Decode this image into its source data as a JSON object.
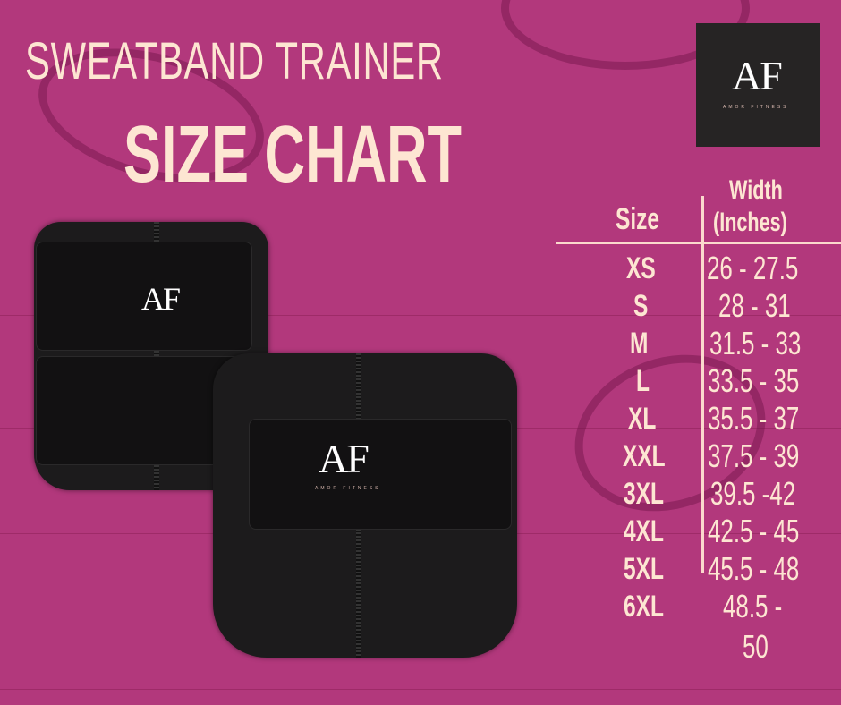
{
  "title": {
    "line1": "SWEATBAND TRAINER",
    "line2": "SIZE CHART"
  },
  "logo": {
    "monogram": "AF",
    "brand": "AMOR FITNESS"
  },
  "table": {
    "headers": {
      "size": "Size",
      "width_line1": "Width",
      "width_line2": "(Inches)"
    },
    "rows": [
      {
        "size": "XS",
        "width": "26 - 27.5"
      },
      {
        "size": "S",
        "width": "28 - 31"
      },
      {
        "size": "M",
        "width": "31.5 - 33"
      },
      {
        "size": "L",
        "width": "33.5 - 35"
      },
      {
        "size": "XL",
        "width": "35.5 - 37"
      },
      {
        "size": "XXL",
        "width": "37.5 - 39"
      },
      {
        "size": "3XL",
        "width": "39.5 -42"
      },
      {
        "size": "4XL",
        "width": "42.5 - 45"
      },
      {
        "size": "5XL",
        "width": "45.5 - 48"
      },
      {
        "size": "6XL",
        "width": "48.5 -",
        "width_cont": "50"
      }
    ]
  },
  "colors": {
    "background": "#b2387c",
    "text": "#fde6d2",
    "logo_bg": "#262424"
  }
}
